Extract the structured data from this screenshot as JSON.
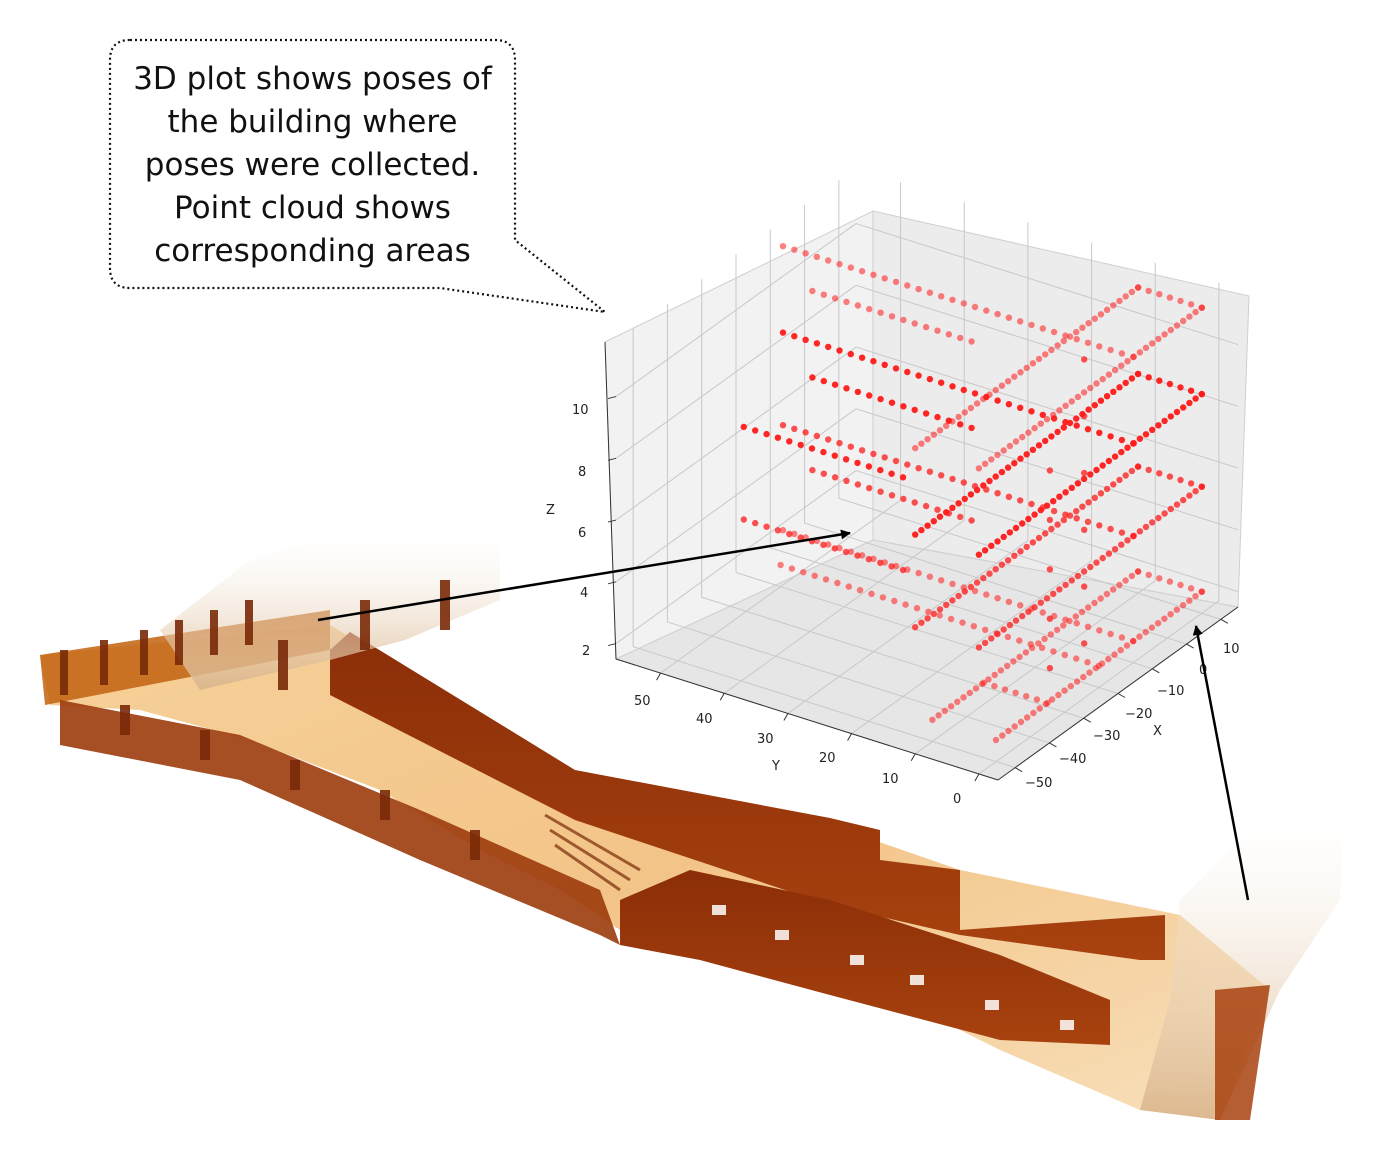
{
  "callout": {
    "lines": [
      "3D plot shows poses of",
      "the building where",
      "poses were collected.",
      "Point cloud shows",
      "corresponding areas"
    ]
  },
  "chart_data": {
    "type": "scatter",
    "title": "",
    "xlabel": "X",
    "ylabel": "Y",
    "zlabel": "Z",
    "x_ticks": [
      "10",
      "0",
      "−10",
      "−20",
      "−30",
      "−40",
      "−50"
    ],
    "y_ticks": [
      "50",
      "40",
      "30",
      "20",
      "10",
      "0"
    ],
    "z_ticks": [
      "10",
      "8",
      "6",
      "4",
      "2"
    ],
    "xlim": [
      -55,
      15
    ],
    "ylim": [
      -3,
      57
    ],
    "zlim": [
      1.5,
      11.8
    ],
    "point_color": "#ff1a1a",
    "series": [
      {
        "values": [
          [
            [
              10,
              0,
              2.2
            ],
            [
              10,
              10,
              2.2
            ]
          ],
          [
            [
              10,
              10,
              2.2
            ],
            [
              -50,
              10,
              2.2
            ]
          ],
          [
            [
              10,
              0,
              2.2
            ],
            [
              -50,
              0,
              2.2
            ]
          ],
          [
            [
              -10,
              0,
              2.2
            ],
            [
              -10,
              55,
              2.2
            ]
          ],
          [
            [
              -35,
              0,
              2.2
            ],
            [
              -35,
              10,
              2.2
            ]
          ],
          [
            [
              -20,
              0,
              2.2
            ],
            [
              -20,
              50,
              2.2
            ]
          ]
        ]
      },
      {
        "values": [
          [
            [
              10,
              0,
              5.6
            ],
            [
              10,
              10,
              5.6
            ]
          ],
          [
            [
              10,
              10,
              5.6
            ],
            [
              -55,
              10,
              5.6
            ]
          ],
          [
            [
              10,
              0,
              5.6
            ],
            [
              -55,
              0,
              5.6
            ]
          ],
          [
            [
              -10,
              0,
              5.6
            ],
            [
              -10,
              55,
              5.6
            ]
          ],
          [
            [
              -20,
              20,
              5.6
            ],
            [
              -20,
              45,
              5.6
            ]
          ],
          [
            [
              -40,
              20,
              5.6
            ],
            [
              -40,
              45,
              5.6
            ]
          ]
        ]
      },
      {
        "values": [
          [
            [
              10,
              0,
              8.6
            ],
            [
              10,
              10,
              8.6
            ]
          ],
          [
            [
              10,
              10,
              8.6
            ],
            [
              -55,
              10,
              8.6
            ]
          ],
          [
            [
              10,
              0,
              8.6
            ],
            [
              -55,
              0,
              8.6
            ]
          ],
          [
            [
              -10,
              0,
              8.6
            ],
            [
              -10,
              55,
              8.6
            ]
          ],
          [
            [
              -20,
              20,
              8.6
            ],
            [
              -20,
              45,
              8.6
            ]
          ],
          [
            [
              -40,
              20,
              8.6
            ],
            [
              -40,
              45,
              8.6
            ]
          ]
        ]
      },
      {
        "values": [
          [
            [
              10,
              0,
              11.4
            ],
            [
              10,
              10,
              11.4
            ]
          ],
          [
            [
              10,
              10,
              11.4
            ],
            [
              -55,
              10,
              11.4
            ]
          ],
          [
            [
              10,
              0,
              11.4
            ],
            [
              -55,
              0,
              11.4
            ]
          ],
          [
            [
              -10,
              0,
              11.4
            ],
            [
              -10,
              55,
              11.4
            ]
          ],
          [
            [
              -20,
              20,
              11.4
            ],
            [
              -20,
              45,
              11.4
            ]
          ]
        ]
      },
      {
        "values": [
          [
            [
              -15,
              5,
              2.2
            ],
            [
              -15,
              5,
              11.4
            ]
          ],
          [
            [
              -25,
              5,
              2.2
            ],
            [
              -25,
              5,
              8.6
            ]
          ]
        ]
      }
    ]
  }
}
